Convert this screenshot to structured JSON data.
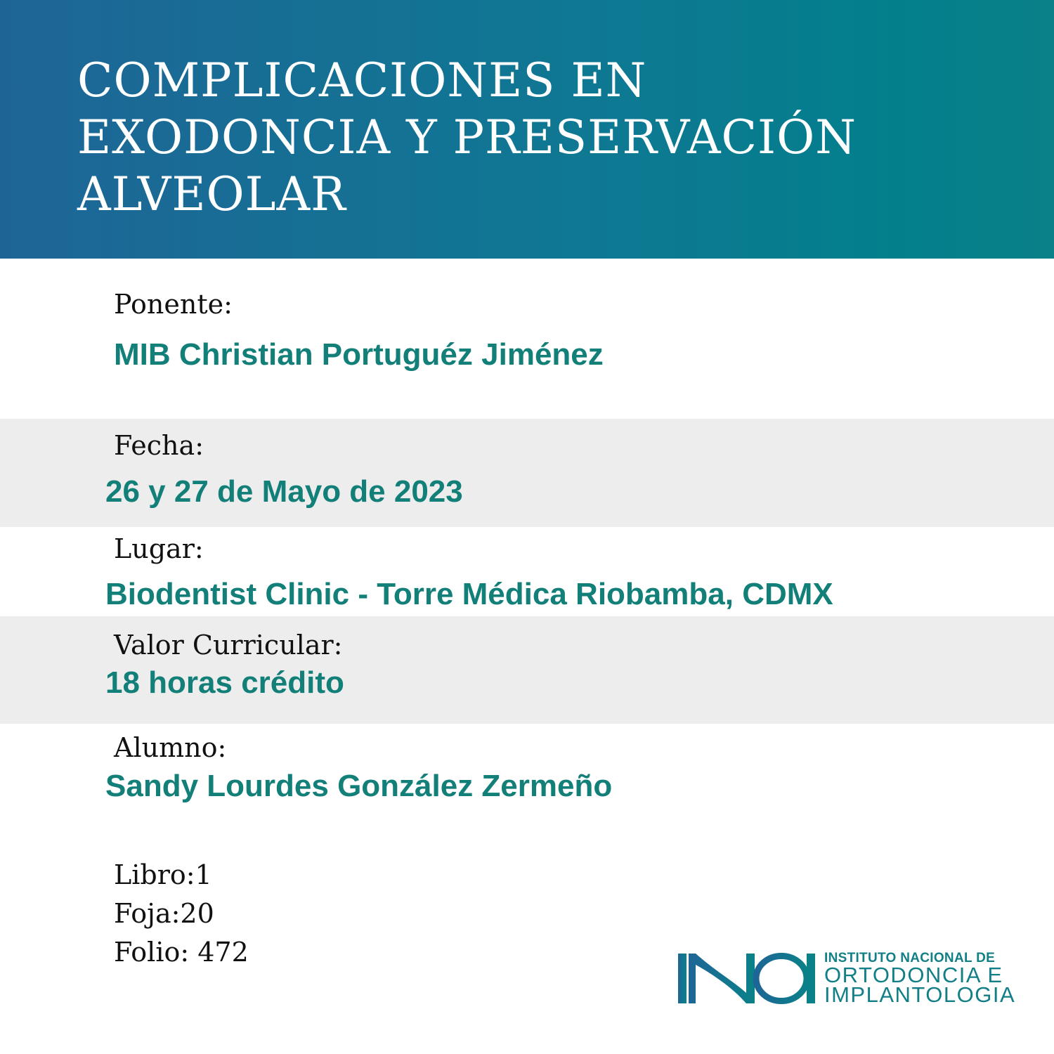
{
  "header": {
    "title_lines": [
      "COMPLICACIONES EN",
      "EXODONCIA Y PRESERVACIÓN",
      "ALVEOLAR"
    ]
  },
  "fields": [
    {
      "label": "Ponente:",
      "value": "MIB Christian Portuguéz Jiménez"
    },
    {
      "label": "Fecha:",
      "value": "26 y 27 de Mayo de 2023"
    },
    {
      "label": "Lugar:",
      "value": "Biodentist Clinic - Torre Médica Riobamba, CDMX"
    },
    {
      "label": "Valor Curricular:",
      "value": "18 horas crédito"
    },
    {
      "label": "Alumno:",
      "value": "Sandy Lourdes González Zermeño"
    }
  ],
  "record": {
    "libro": "Libro:1",
    "foja": "Foja:20",
    "folio": "Folio: 472"
  },
  "logo": {
    "mark": "INOI",
    "line1": "INSTITUTO NACIONAL DE",
    "line2": "ORTODONCIA E",
    "line3": "IMPLANTOLOGIA"
  },
  "colors": {
    "header_start": "#1e6596",
    "header_end": "#037f8c",
    "accent_teal": "#127f78",
    "band_gray": "#ededed"
  }
}
